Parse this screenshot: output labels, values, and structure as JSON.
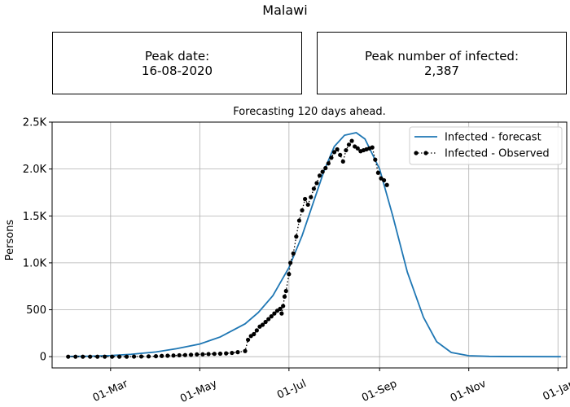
{
  "figure": {
    "title": "Malawi",
    "boxes": [
      {
        "label": "Peak date:",
        "value": "16-08-2020"
      },
      {
        "label": "Peak number of infected:",
        "value": "2,387"
      }
    ]
  },
  "chart_data": {
    "type": "line",
    "title": "Forecasting 120 days ahead.",
    "xlabel": "",
    "ylabel": "Persons",
    "xlim": [
      "2020-01-21",
      "2021-01-07"
    ],
    "ylim": [
      -120,
      2500
    ],
    "grid": true,
    "legend": "top-right",
    "x_ticks": [
      {
        "date": "2020-03-01",
        "label": "01-Mar"
      },
      {
        "date": "2020-05-01",
        "label": "01-May"
      },
      {
        "date": "2020-07-01",
        "label": "01-Jul"
      },
      {
        "date": "2020-09-01",
        "label": "01-Sep"
      },
      {
        "date": "2020-11-01",
        "label": "01-Nov"
      },
      {
        "date": "2021-01-01",
        "label": "01-Jan"
      }
    ],
    "y_ticks": [
      {
        "value": 0,
        "label": "0"
      },
      {
        "value": 500,
        "label": "500"
      },
      {
        "value": 1000,
        "label": "1.0K"
      },
      {
        "value": 1500,
        "label": "1.5K"
      },
      {
        "value": 2000,
        "label": "2.0K"
      },
      {
        "value": 2500,
        "label": "2.5K"
      }
    ],
    "series": [
      {
        "name": "Infected - forecast",
        "color": "#1f77b4",
        "style": "solid-line",
        "points": [
          [
            "2020-02-01",
            2
          ],
          [
            "2020-02-15",
            5
          ],
          [
            "2020-03-01",
            12
          ],
          [
            "2020-03-15",
            25
          ],
          [
            "2020-04-01",
            50
          ],
          [
            "2020-04-15",
            85
          ],
          [
            "2020-05-01",
            135
          ],
          [
            "2020-05-15",
            210
          ],
          [
            "2020-06-01",
            350
          ],
          [
            "2020-06-10",
            470
          ],
          [
            "2020-06-20",
            650
          ],
          [
            "2020-07-01",
            950
          ],
          [
            "2020-07-10",
            1290
          ],
          [
            "2020-07-20",
            1750
          ],
          [
            "2020-07-25",
            1980
          ],
          [
            "2020-08-01",
            2240
          ],
          [
            "2020-08-08",
            2360
          ],
          [
            "2020-08-16",
            2387
          ],
          [
            "2020-08-22",
            2320
          ],
          [
            "2020-09-01",
            2000
          ],
          [
            "2020-09-10",
            1500
          ],
          [
            "2020-09-20",
            900
          ],
          [
            "2020-10-01",
            420
          ],
          [
            "2020-10-10",
            160
          ],
          [
            "2020-10-20",
            45
          ],
          [
            "2020-11-01",
            10
          ],
          [
            "2020-11-15",
            3
          ],
          [
            "2020-12-01",
            1
          ],
          [
            "2021-01-03",
            0
          ]
        ]
      },
      {
        "name": "Infected - Observed",
        "color": "#000000",
        "style": "dotted-line-with-markers",
        "points": [
          [
            "2020-02-01",
            0
          ],
          [
            "2020-02-06",
            0
          ],
          [
            "2020-02-11",
            0
          ],
          [
            "2020-02-16",
            0
          ],
          [
            "2020-02-21",
            0
          ],
          [
            "2020-02-26",
            0
          ],
          [
            "2020-03-02",
            0
          ],
          [
            "2020-03-07",
            0
          ],
          [
            "2020-03-12",
            0
          ],
          [
            "2020-03-17",
            1
          ],
          [
            "2020-03-22",
            2
          ],
          [
            "2020-03-27",
            3
          ],
          [
            "2020-04-01",
            5
          ],
          [
            "2020-04-05",
            8
          ],
          [
            "2020-04-09",
            10
          ],
          [
            "2020-04-13",
            12
          ],
          [
            "2020-04-17",
            15
          ],
          [
            "2020-04-21",
            17
          ],
          [
            "2020-04-25",
            20
          ],
          [
            "2020-04-29",
            24
          ],
          [
            "2020-05-03",
            25
          ],
          [
            "2020-05-07",
            28
          ],
          [
            "2020-05-11",
            30
          ],
          [
            "2020-05-15",
            32
          ],
          [
            "2020-05-19",
            35
          ],
          [
            "2020-05-23",
            40
          ],
          [
            "2020-05-27",
            48
          ],
          [
            "2020-06-01",
            60
          ],
          [
            "2020-06-03",
            180
          ],
          [
            "2020-06-05",
            220
          ],
          [
            "2020-06-07",
            240
          ],
          [
            "2020-06-09",
            280
          ],
          [
            "2020-06-11",
            320
          ],
          [
            "2020-06-13",
            340
          ],
          [
            "2020-06-15",
            370
          ],
          [
            "2020-06-17",
            400
          ],
          [
            "2020-06-19",
            430
          ],
          [
            "2020-06-21",
            460
          ],
          [
            "2020-06-23",
            490
          ],
          [
            "2020-06-25",
            510
          ],
          [
            "2020-06-26",
            460
          ],
          [
            "2020-06-27",
            540
          ],
          [
            "2020-06-28",
            640
          ],
          [
            "2020-06-29",
            700
          ],
          [
            "2020-07-01",
            880
          ],
          [
            "2020-07-02",
            1000
          ],
          [
            "2020-07-04",
            1100
          ],
          [
            "2020-07-06",
            1280
          ],
          [
            "2020-07-08",
            1450
          ],
          [
            "2020-07-10",
            1560
          ],
          [
            "2020-07-12",
            1680
          ],
          [
            "2020-07-14",
            1620
          ],
          [
            "2020-07-16",
            1700
          ],
          [
            "2020-07-18",
            1790
          ],
          [
            "2020-07-20",
            1850
          ],
          [
            "2020-07-22",
            1930
          ],
          [
            "2020-07-24",
            1970
          ],
          [
            "2020-07-26",
            2010
          ],
          [
            "2020-07-28",
            2060
          ],
          [
            "2020-07-30",
            2120
          ],
          [
            "2020-08-01",
            2180
          ],
          [
            "2020-08-03",
            2210
          ],
          [
            "2020-08-05",
            2150
          ],
          [
            "2020-08-07",
            2080
          ],
          [
            "2020-08-09",
            2200
          ],
          [
            "2020-08-11",
            2260
          ],
          [
            "2020-08-13",
            2300
          ],
          [
            "2020-08-15",
            2240
          ],
          [
            "2020-08-17",
            2220
          ],
          [
            "2020-08-19",
            2190
          ],
          [
            "2020-08-21",
            2200
          ],
          [
            "2020-08-23",
            2210
          ],
          [
            "2020-08-25",
            2220
          ],
          [
            "2020-08-27",
            2230
          ],
          [
            "2020-08-29",
            2100
          ],
          [
            "2020-08-31",
            1960
          ],
          [
            "2020-09-02",
            1900
          ],
          [
            "2020-09-04",
            1880
          ],
          [
            "2020-09-06",
            1830
          ]
        ]
      }
    ]
  }
}
